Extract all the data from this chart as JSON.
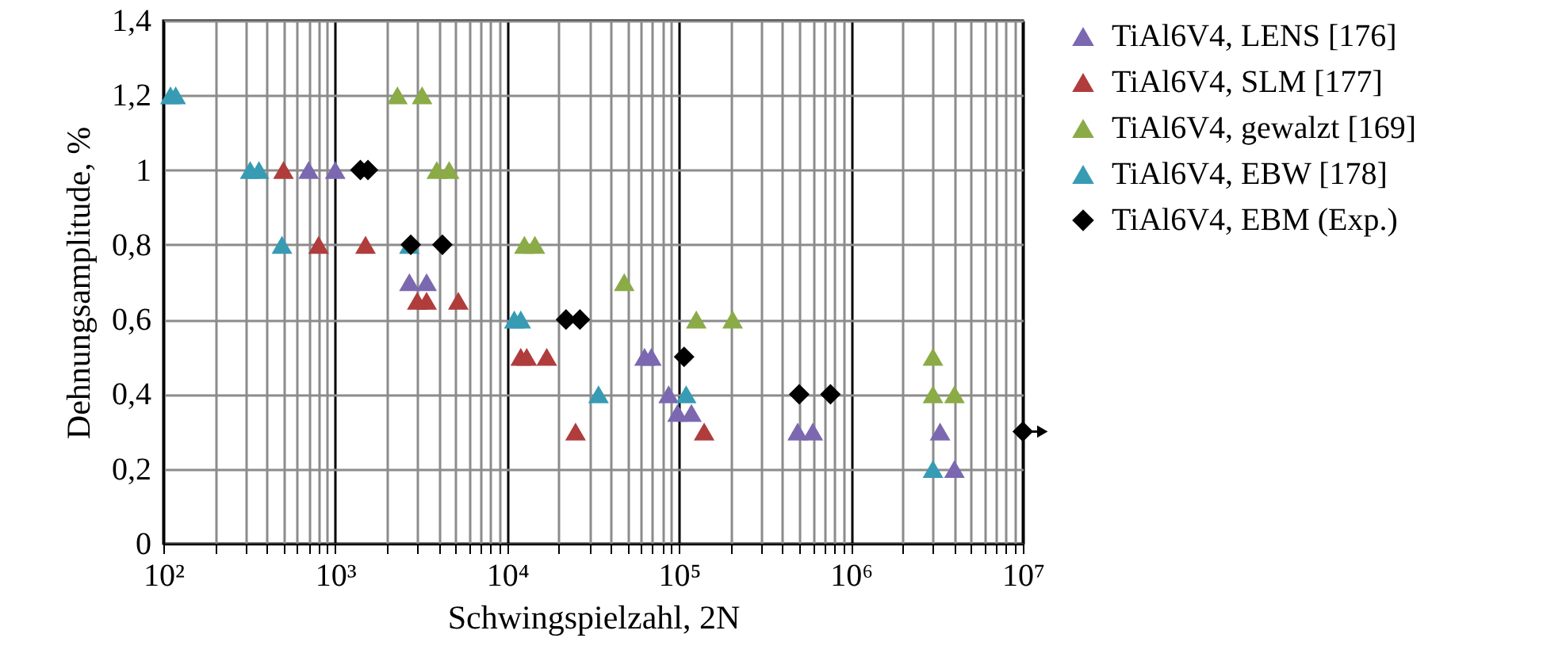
{
  "chart_data": {
    "type": "scatter",
    "xlabel": "Schwingspielzahl, 2N",
    "ylabel": "Dehnungsamplitude, %",
    "log": "x",
    "grid": true,
    "legend": "right",
    "marker": "triangle",
    "xlim": [
      100,
      10000000
    ],
    "ylim": [
      0,
      1.4
    ],
    "xticks": [
      {
        "value": 100,
        "label": "10²"
      },
      {
        "value": 200,
        "label": null
      },
      {
        "value": 300,
        "label": null
      },
      {
        "value": 400,
        "label": null
      },
      {
        "value": 500,
        "label": null
      },
      {
        "value": 600,
        "label": null
      },
      {
        "value": 700,
        "label": null
      },
      {
        "value": 800,
        "label": null
      },
      {
        "value": 900,
        "label": null
      },
      {
        "value": 1000,
        "label": "10³"
      },
      {
        "value": 2000,
        "label": null
      },
      {
        "value": 3000,
        "label": null
      },
      {
        "value": 4000,
        "label": null
      },
      {
        "value": 5000,
        "label": null
      },
      {
        "value": 6000,
        "label": null
      },
      {
        "value": 7000,
        "label": null
      },
      {
        "value": 8000,
        "label": null
      },
      {
        "value": 9000,
        "label": null
      },
      {
        "value": 10000,
        "label": "10⁴"
      },
      {
        "value": 20000,
        "label": null
      },
      {
        "value": 30000,
        "label": null
      },
      {
        "value": 40000,
        "label": null
      },
      {
        "value": 50000,
        "label": null
      },
      {
        "value": 60000,
        "label": null
      },
      {
        "value": 70000,
        "label": null
      },
      {
        "value": 80000,
        "label": null
      },
      {
        "value": 90000,
        "label": null
      },
      {
        "value": 100000,
        "label": "10⁵"
      },
      {
        "value": 200000,
        "label": null
      },
      {
        "value": 300000,
        "label": null
      },
      {
        "value": 400000,
        "label": null
      },
      {
        "value": 500000,
        "label": null
      },
      {
        "value": 600000,
        "label": null
      },
      {
        "value": 700000,
        "label": null
      },
      {
        "value": 800000,
        "label": null
      },
      {
        "value": 900000,
        "label": null
      },
      {
        "value": 1000000,
        "label": "10⁶"
      },
      {
        "value": 2000000,
        "label": null
      },
      {
        "value": 3000000,
        "label": null
      },
      {
        "value": 4000000,
        "label": null
      },
      {
        "value": 5000000,
        "label": null
      },
      {
        "value": 6000000,
        "label": null
      },
      {
        "value": 7000000,
        "label": null
      },
      {
        "value": 8000000,
        "label": null
      },
      {
        "value": 9000000,
        "label": null
      },
      {
        "value": 10000000,
        "label": "10⁷"
      }
    ],
    "yticks": [
      {
        "value": 0,
        "label": "0"
      },
      {
        "value": 0.2,
        "label": "0,2"
      },
      {
        "value": 0.4,
        "label": "0,4"
      },
      {
        "value": 0.6,
        "label": "0,6"
      },
      {
        "value": 0.8,
        "label": "0,8"
      },
      {
        "value": 1,
        "label": "1"
      },
      {
        "value": 1.2,
        "label": "1,2"
      },
      {
        "value": 1.4,
        "label": "1,4"
      }
    ],
    "series": [
      {
        "name": "TiAl6V4, LENS [176]",
        "color": "#7b68b0",
        "x": [
          700,
          1000,
          2700,
          3400,
          63000,
          69000,
          87000,
          98000,
          118000,
          490000,
          600000,
          3300000,
          4000000
        ],
        "values": [
          1,
          1,
          0.7,
          0.7,
          0.5,
          0.5,
          0.4,
          0.35,
          0.35,
          0.3,
          0.3,
          0.3,
          0.2
        ]
      },
      {
        "name": "TiAl6V4, SLM [177]",
        "color": "#b03c3c",
        "x": [
          500,
          800,
          1500,
          3000,
          3400,
          5200,
          12000,
          13000,
          17000,
          25000,
          140000
        ],
        "values": [
          1,
          0.8,
          0.8,
          0.65,
          0.65,
          0.65,
          0.5,
          0.5,
          0.5,
          0.3,
          0.3
        ]
      },
      {
        "name": "TiAl6V4, gewalzt [169]",
        "color": "#8aab46",
        "x": [
          2300,
          3200,
          3900,
          4600,
          12600,
          14500,
          48000,
          126000,
          205000,
          3000000,
          3000000,
          4000000
        ],
        "values": [
          1.2,
          1.2,
          1,
          1,
          0.8,
          0.8,
          0.7,
          0.6,
          0.6,
          0.5,
          0.4,
          0.4
        ]
      },
      {
        "name": "TiAl6V4, EBW [178]",
        "color": "#379bb4",
        "x": [
          110,
          118,
          320,
          360,
          490,
          2700,
          11000,
          12000,
          34000,
          110000,
          3000000
        ],
        "values": [
          1.2,
          1.2,
          1,
          1,
          0.8,
          0.8,
          0.6,
          0.6,
          0.4,
          0.4,
          0.2
        ]
      },
      {
        "name": "TiAl6V4, EBM (Exp.)",
        "color": "#000000",
        "marker": "diamond",
        "x": [
          1400,
          1550,
          2750,
          4200,
          22000,
          26500,
          107000,
          500000,
          760000,
          10000000
        ],
        "values": [
          1,
          1,
          0.8,
          0.8,
          0.6,
          0.6,
          0.5,
          0.4,
          0.4,
          0.3
        ]
      }
    ]
  }
}
